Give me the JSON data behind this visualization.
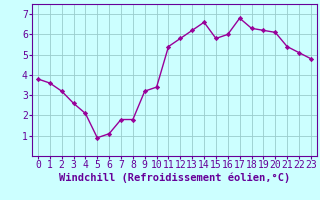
{
  "x": [
    0,
    1,
    2,
    3,
    4,
    5,
    6,
    7,
    8,
    9,
    10,
    11,
    12,
    13,
    14,
    15,
    16,
    17,
    18,
    19,
    20,
    21,
    22,
    23
  ],
  "y": [
    3.8,
    3.6,
    3.2,
    2.6,
    2.1,
    0.9,
    1.1,
    1.8,
    1.8,
    3.2,
    3.4,
    5.4,
    5.8,
    6.2,
    6.6,
    5.8,
    6.0,
    6.8,
    6.3,
    6.2,
    6.1,
    5.4,
    5.1,
    4.8
  ],
  "line_color": "#990099",
  "marker": "D",
  "marker_size": 2.2,
  "line_width": 1.0,
  "bg_color": "#ccffff",
  "grid_color": "#99cccc",
  "xlabel": "Windchill (Refroidissement éolien,°C)",
  "xlabel_color": "#660099",
  "xlabel_fontsize": 7.5,
  "tick_fontsize": 7.0,
  "tick_color": "#660099",
  "ylim": [
    0,
    7.5
  ],
  "xlim": [
    -0.5,
    23.5
  ],
  "yticks": [
    1,
    2,
    3,
    4,
    5,
    6,
    7
  ],
  "xticks": [
    0,
    1,
    2,
    3,
    4,
    5,
    6,
    7,
    8,
    9,
    10,
    11,
    12,
    13,
    14,
    15,
    16,
    17,
    18,
    19,
    20,
    21,
    22,
    23
  ],
  "spine_color": "#660099"
}
